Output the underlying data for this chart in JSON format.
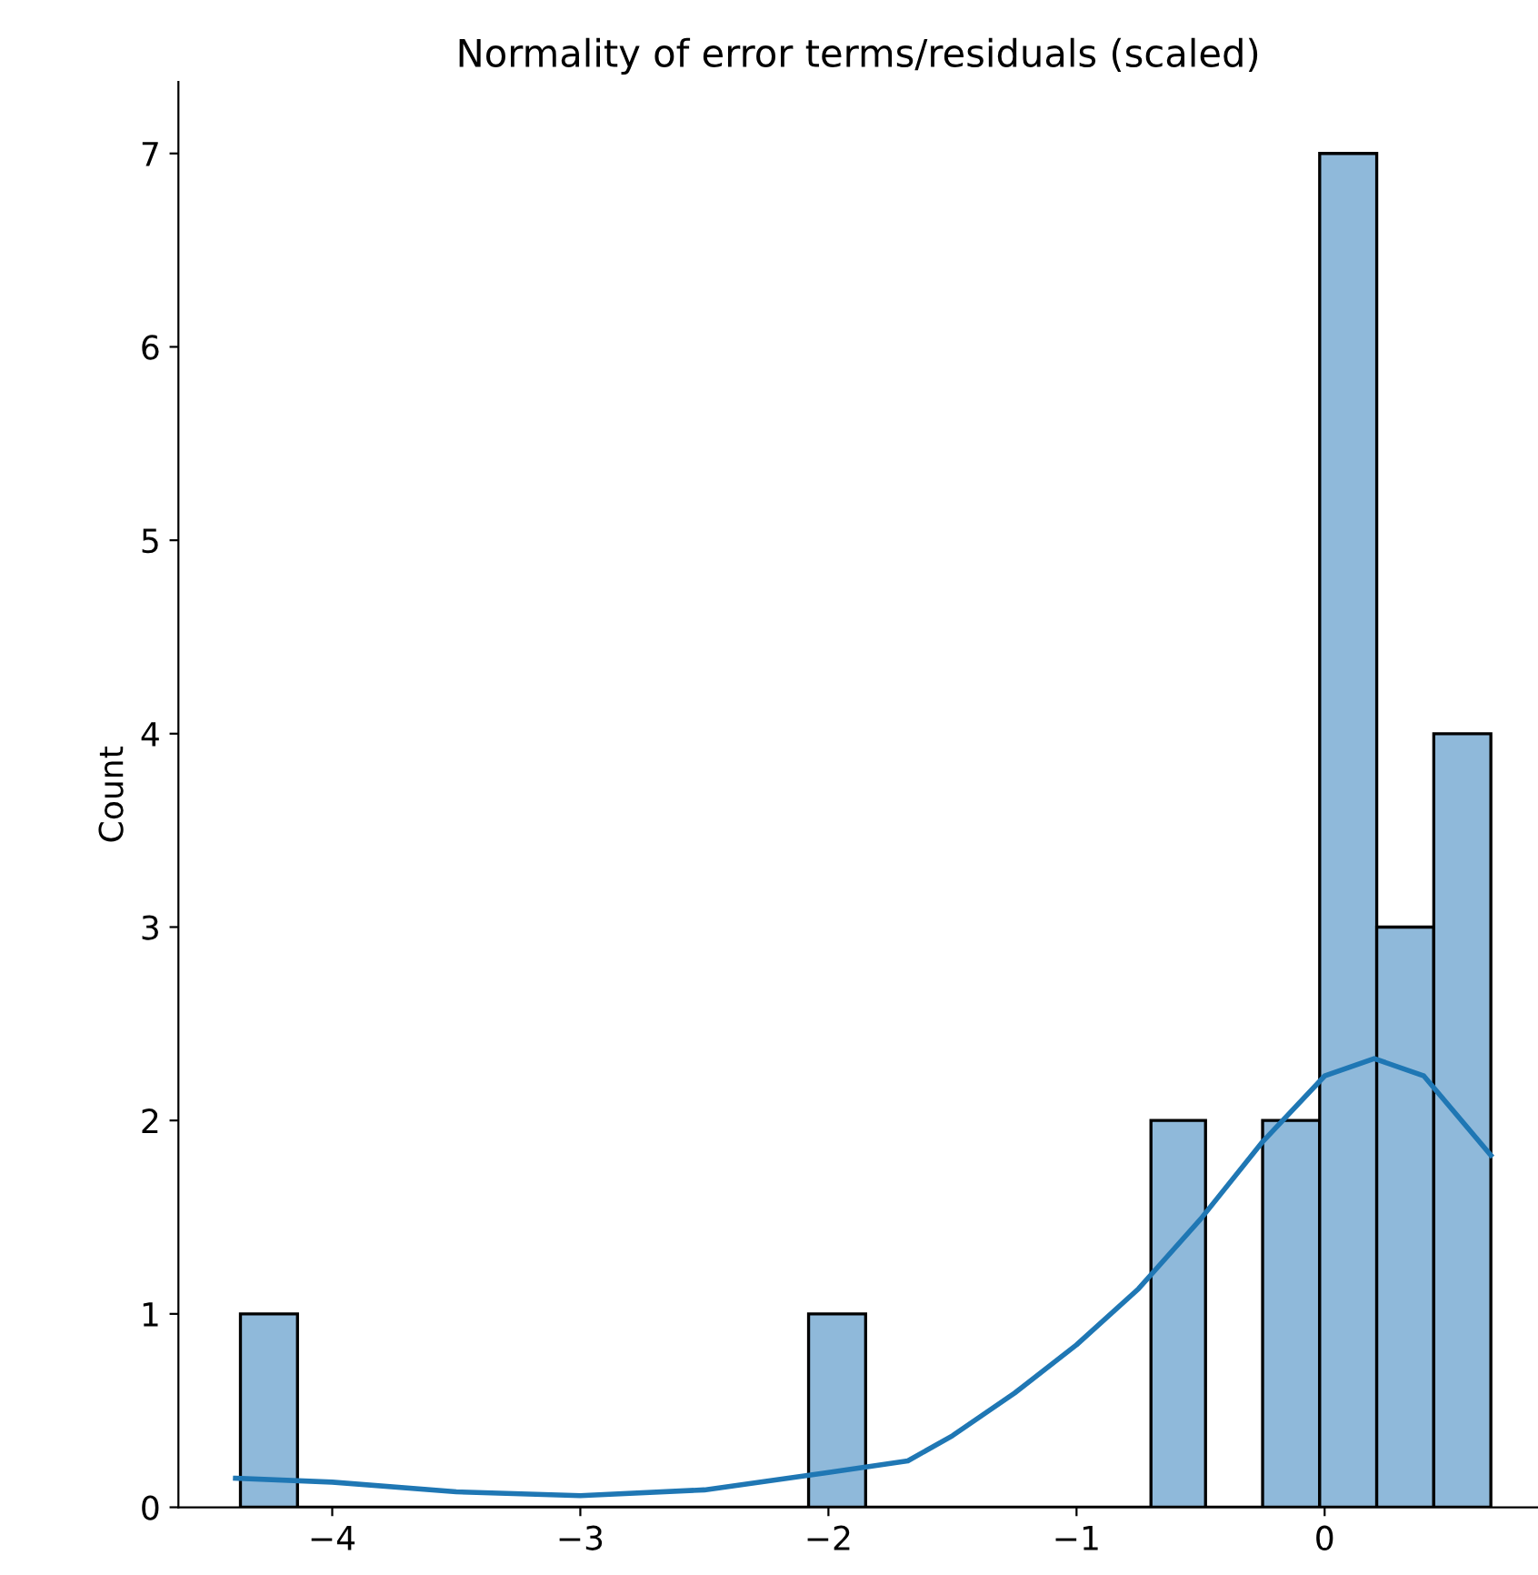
{
  "chart_data": {
    "type": "histogram",
    "title": "Normality of error terms/residuals (scaled)",
    "ylabel": "Count",
    "bins": [
      -4.37,
      -4.14,
      -2.08,
      -1.85,
      -0.7,
      -0.48,
      -0.25,
      -0.02,
      0.21,
      0.44,
      0.67
    ],
    "values": [
      1,
      0,
      1,
      0,
      2,
      0,
      2,
      7,
      3,
      4
    ],
    "color": "#8fb9da",
    "series": [
      {
        "type": "line",
        "color": "#1f77b4",
        "x": [
          -4.39,
          -4.0,
          -3.5,
          -3.0,
          -2.5,
          -2.0,
          -1.68,
          -1.5,
          -1.25,
          -1.0,
          -0.75,
          -0.5,
          -0.25,
          0.0,
          0.2,
          0.4,
          0.67
        ],
        "values": [
          0.15,
          0.13,
          0.08,
          0.06,
          0.09,
          0.18,
          0.24,
          0.37,
          0.59,
          0.84,
          1.13,
          1.49,
          1.89,
          2.23,
          2.32,
          2.23,
          1.82
        ]
      }
    ],
    "xlim": [
      -4.62,
      0.86
    ],
    "ylim": [
      0,
      7.37
    ],
    "xticks": [
      -4,
      -3,
      -2,
      -1,
      0
    ],
    "yticks": [
      0,
      1,
      2,
      3,
      4,
      5,
      6,
      7
    ],
    "grid": false
  }
}
